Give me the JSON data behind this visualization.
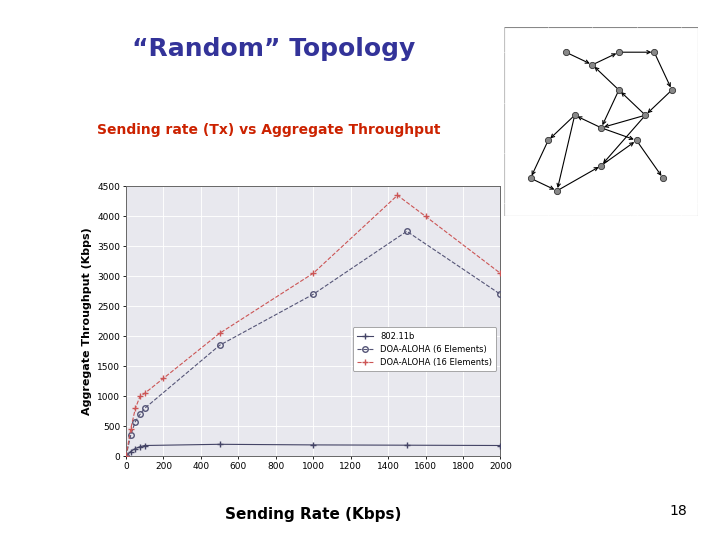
{
  "title": "“Random” Topology",
  "title_color": "#333399",
  "subtitle": "Sending rate (Tx) vs Aggregate Throughput",
  "subtitle_color": "#cc2200",
  "xlabel": "Sending Rate (Kbps)",
  "ylabel": "Aggregate Throughput (Kbps)",
  "background_color": "#ffffff",
  "plot_bg_color": "#e8e8ee",
  "page_number": "18",
  "ieee_x": [
    0,
    25,
    50,
    75,
    100,
    500,
    1000,
    1500,
    2000
  ],
  "ieee_y": [
    0,
    80,
    130,
    160,
    180,
    200,
    190,
    185,
    180
  ],
  "doa5_x": [
    0,
    25,
    50,
    75,
    100,
    500,
    1000,
    1500,
    2000
  ],
  "doa5_y": [
    0,
    350,
    580,
    700,
    800,
    1850,
    2700,
    3750,
    2700
  ],
  "doa16_x": [
    0,
    25,
    50,
    75,
    100,
    200,
    500,
    1000,
    1450,
    1600,
    2000
  ],
  "doa16_y": [
    0,
    450,
    800,
    1000,
    1050,
    1300,
    2050,
    3050,
    4350,
    4000,
    3050
  ],
  "xlim": [
    0,
    2000
  ],
  "ylim": [
    0,
    4500
  ],
  "xticks": [
    0,
    200,
    400,
    600,
    800,
    1000,
    1200,
    1400,
    1600,
    1800,
    2000
  ],
  "yticks": [
    0,
    500,
    1000,
    1500,
    2000,
    2500,
    3000,
    3500,
    4000,
    4500
  ],
  "ieee_color": "#444466",
  "doa5_color": "#555577",
  "doa16_color": "#cc5555",
  "legend_labels": [
    "802.11b",
    "DOA-ALOHA (6 Elements)",
    "DOA-ALOHA (16 Elements)"
  ],
  "net_nodes_x": [
    3.5,
    5.0,
    6.5,
    8.5,
    9.5,
    8.0,
    6.5,
    5.5,
    4.0,
    2.5,
    1.5,
    3.0,
    5.5,
    7.5,
    9.0
  ],
  "net_nodes_y": [
    9.0,
    8.5,
    9.0,
    9.0,
    7.5,
    6.5,
    7.5,
    6.0,
    6.5,
    5.5,
    4.0,
    3.5,
    4.5,
    5.5,
    4.0
  ],
  "net_edges": [
    [
      0,
      1
    ],
    [
      1,
      2
    ],
    [
      2,
      3
    ],
    [
      3,
      4
    ],
    [
      4,
      5
    ],
    [
      5,
      6
    ],
    [
      6,
      7
    ],
    [
      7,
      8
    ],
    [
      8,
      9
    ],
    [
      9,
      10
    ],
    [
      10,
      11
    ],
    [
      11,
      12
    ],
    [
      12,
      13
    ],
    [
      13,
      14
    ],
    [
      5,
      7
    ],
    [
      5,
      12
    ],
    [
      6,
      1
    ],
    [
      7,
      13
    ],
    [
      8,
      11
    ]
  ]
}
